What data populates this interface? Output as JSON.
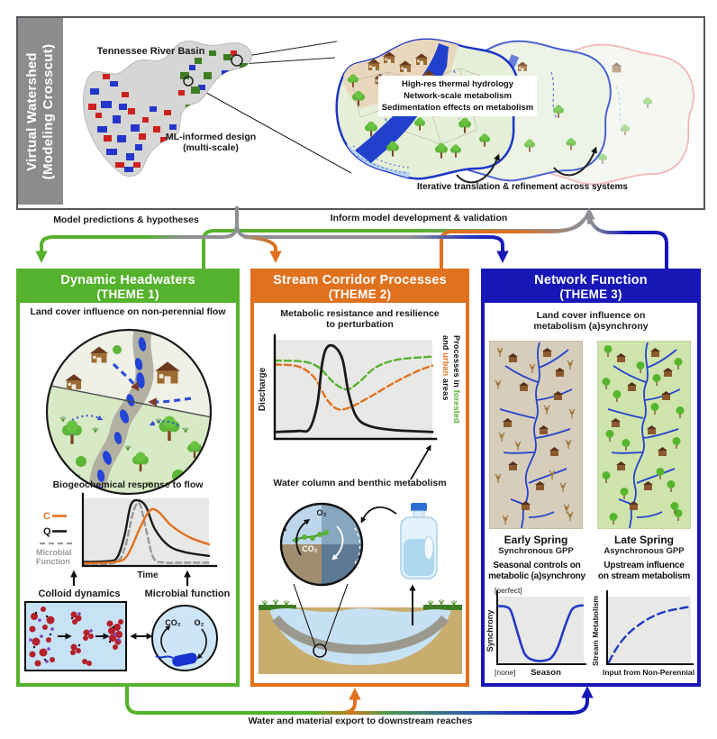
{
  "top_panel": {
    "sidebar_line1": "Virtual Watershed",
    "sidebar_line2": "(Modeling Crosscut)",
    "map_title": "Tennessee River Basin",
    "ml_line1": "ML-informed design",
    "ml_line2": "(multi-scale)",
    "callout_line1": "High-res thermal hydrology",
    "callout_line2": "Network-scale metabolism",
    "callout_line3": "Sedimentation effects on metabolism",
    "iterative_label": "Iterative translation & refinement across systems"
  },
  "connectors": {
    "predictions_label": "Model predictions & hypotheses",
    "inform_label": "Inform model development & validation",
    "export_label": "Water and material export to downstream reaches"
  },
  "palette": {
    "green": "#55b22c",
    "orange": "#e0711f",
    "blue": "#1717b8",
    "gray": "#8e9093",
    "chart_blue": "#2139c2"
  },
  "theme1": {
    "title_line1": "Dynamic Headwaters",
    "title_line2": "(THEME 1)",
    "section1_title": "Land cover influence on non-perennial flow",
    "section2_title": "Biogeochemical response to flow",
    "legend_c": "C",
    "legend_q": "Q",
    "legend_microbial_line1": "Microbial",
    "legend_microbial_line2": "Function",
    "time_label": "Time",
    "colloid_label": "Colloid dynamics",
    "microbial_label": "Microbial function",
    "co2": "CO₂",
    "o2": "O₂"
  },
  "theme2": {
    "title_line1": "Stream Corridor Processes",
    "title_line2": "(THEME 2)",
    "section1_line1": "Metabolic resistance and resilience",
    "section1_line2": "to perturbation",
    "ylabel": "Discharge",
    "side_p1": "Processes in ",
    "side_forested": "forested",
    "side_p2": "and ",
    "side_urban": "urban",
    "side_p3": " areas",
    "section2_title": "Water column and benthic metabolism",
    "o2": "O₂",
    "co2": "CO₂"
  },
  "theme3": {
    "title_line1": "Network Function",
    "title_line2": "(THEME 3)",
    "section1_line1": "Land cover influence on",
    "section1_line2": "metabolism (a)synchrony",
    "panel1_label": "Early Spring",
    "panel1_sub": "Synchronous GPP",
    "panel2_label": "Late Spring",
    "panel2_sub": "Asynchronous GPP",
    "chart1_title_line1": "Seasonal controls on",
    "chart1_title_line2": "metabolic (a)synchrony",
    "chart1_ytop": "[perfect]",
    "chart1_ybottom": "[none]",
    "chart1_ylabel": "Synchrony",
    "chart1_xlabel": "Season",
    "chart2_title_line1": "Upstream influence",
    "chart2_title_line2": "on stream metabolism",
    "chart2_ylabel": "Stream Metabolism",
    "chart2_xlabel": "Input from Non-Perennial"
  },
  "chart_data": [
    {
      "id": "biogeochemical_response_to_flow",
      "type": "line",
      "xlabel": "Time",
      "ylabel": "",
      "legend": [
        "C",
        "Q",
        "Microbial Function"
      ],
      "series": [
        {
          "name": "Q",
          "color": "#1a1a1a",
          "dash": "",
          "points": [
            [
              0,
              0.06
            ],
            [
              0.18,
              0.07
            ],
            [
              0.27,
              0.12
            ],
            [
              0.33,
              0.45
            ],
            [
              0.38,
              0.9
            ],
            [
              0.44,
              0.97
            ],
            [
              0.5,
              0.88
            ],
            [
              0.57,
              0.55
            ],
            [
              0.68,
              0.3
            ],
            [
              0.82,
              0.2
            ],
            [
              1,
              0.15
            ]
          ]
        },
        {
          "name": "Microbial Function",
          "color": "#999999",
          "dash": "6,4",
          "points": [
            [
              0,
              0.02
            ],
            [
              0.25,
              0.05
            ],
            [
              0.33,
              0.25
            ],
            [
              0.4,
              0.8
            ],
            [
              0.45,
              0.92
            ],
            [
              0.5,
              0.55
            ],
            [
              0.56,
              0.12
            ],
            [
              0.65,
              0.05
            ],
            [
              0.8,
              0.05
            ],
            [
              1,
              0.05
            ]
          ]
        },
        {
          "name": "C",
          "color": "#e0711f",
          "dash": "",
          "points": [
            [
              0,
              0.04
            ],
            [
              0.25,
              0.06
            ],
            [
              0.35,
              0.15
            ],
            [
              0.45,
              0.55
            ],
            [
              0.53,
              0.82
            ],
            [
              0.6,
              0.8
            ],
            [
              0.7,
              0.6
            ],
            [
              0.85,
              0.42
            ],
            [
              1,
              0.32
            ]
          ]
        }
      ]
    },
    {
      "id": "metabolic_resistance_resilience",
      "type": "line",
      "xlabel": "",
      "ylabel": "Discharge",
      "legend": [
        "Discharge",
        "Processes in forested areas",
        "Processes in urban areas"
      ],
      "series": [
        {
          "name": "forested",
          "color": "#55b22c",
          "dash": "7,4",
          "points": [
            [
              0,
              0.79
            ],
            [
              0.18,
              0.78
            ],
            [
              0.28,
              0.72
            ],
            [
              0.38,
              0.56
            ],
            [
              0.46,
              0.5
            ],
            [
              0.54,
              0.58
            ],
            [
              0.64,
              0.72
            ],
            [
              0.78,
              0.8
            ],
            [
              1,
              0.83
            ]
          ]
        },
        {
          "name": "urban",
          "color": "#e0711f",
          "dash": "7,4",
          "points": [
            [
              0,
              0.75
            ],
            [
              0.15,
              0.73
            ],
            [
              0.25,
              0.62
            ],
            [
              0.33,
              0.4
            ],
            [
              0.4,
              0.3
            ],
            [
              0.48,
              0.32
            ],
            [
              0.6,
              0.42
            ],
            [
              0.75,
              0.56
            ],
            [
              0.9,
              0.68
            ],
            [
              1,
              0.74
            ]
          ]
        },
        {
          "name": "Discharge",
          "color": "#1a1a1a",
          "dash": "",
          "points": [
            [
              0,
              0.07
            ],
            [
              0.15,
              0.08
            ],
            [
              0.22,
              0.1
            ],
            [
              0.27,
              0.35
            ],
            [
              0.3,
              0.75
            ],
            [
              0.33,
              0.92
            ],
            [
              0.38,
              0.93
            ],
            [
              0.43,
              0.8
            ],
            [
              0.47,
              0.45
            ],
            [
              0.52,
              0.22
            ],
            [
              0.6,
              0.13
            ],
            [
              0.75,
              0.09
            ],
            [
              1,
              0.07
            ]
          ]
        }
      ]
    },
    {
      "id": "seasonal_controls_synchrony",
      "type": "line",
      "xlabel": "Season",
      "ylabel": "Synchrony",
      "yticks": [
        "[none]",
        "[perfect]"
      ],
      "series": [
        {
          "name": "Synchrony",
          "color": "#2139c2",
          "dash": "",
          "points": [
            [
              0.02,
              0.86
            ],
            [
              0.1,
              0.85
            ],
            [
              0.16,
              0.78
            ],
            [
              0.24,
              0.45
            ],
            [
              0.32,
              0.15
            ],
            [
              0.42,
              0.06
            ],
            [
              0.52,
              0.05
            ],
            [
              0.62,
              0.09
            ],
            [
              0.7,
              0.25
            ],
            [
              0.78,
              0.55
            ],
            [
              0.86,
              0.8
            ],
            [
              0.93,
              0.86
            ],
            [
              0.99,
              0.87
            ]
          ]
        }
      ]
    },
    {
      "id": "upstream_influence_metabolism",
      "type": "line",
      "xlabel": "Input from Non-Perennial",
      "ylabel": "Stream Metabolism",
      "series": [
        {
          "name": "Stream Metabolism",
          "color": "#2139c2",
          "dash": "8,5",
          "points": [
            [
              0.02,
              0.03
            ],
            [
              0.12,
              0.25
            ],
            [
              0.25,
              0.45
            ],
            [
              0.4,
              0.6
            ],
            [
              0.55,
              0.71
            ],
            [
              0.7,
              0.78
            ],
            [
              0.85,
              0.82
            ],
            [
              0.99,
              0.85
            ]
          ]
        }
      ]
    }
  ]
}
